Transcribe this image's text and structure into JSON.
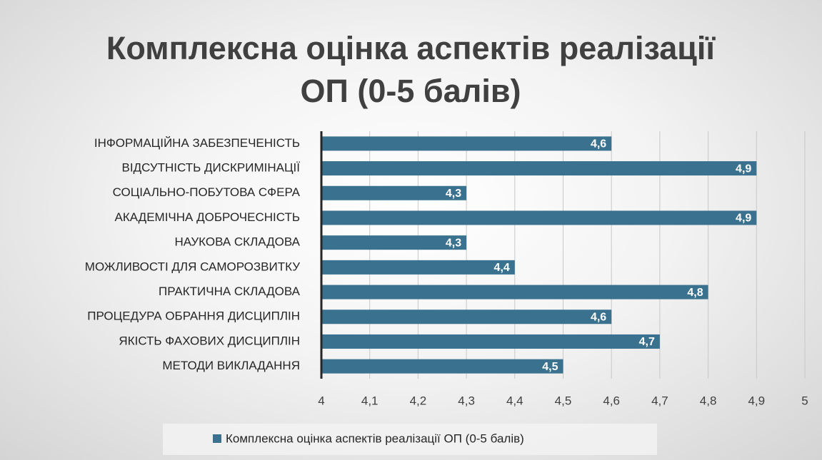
{
  "chart_data": {
    "type": "barh",
    "title": "Комплексна оцінка аспектів реалізації ОП (0-5 балів)",
    "categories": [
      "ІНФОРМАЦІЙНА ЗАБЕЗПЕЧЕНІСТЬ",
      "ВІДСУТНІСТЬ ДИСКРИМІНАЦІЇ",
      "СОЦІАЛЬНО-ПОБУТОВА СФЕРА",
      "АКАДЕМІЧНА ДОБРОЧЕСНІСТЬ",
      "НАУКОВА СКЛАДОВА",
      "МОЖЛИВОСТІ ДЛЯ САМОРОЗВИТКУ",
      "ПРАКТИЧНА СКЛАДОВА",
      "ПРОЦЕДУРА ОБРАННЯ ДИСЦИПЛІН",
      "ЯКІСТЬ ФАХОВИХ ДИСЦИПЛІН",
      "МЕТОДИ ВИКЛАДАННЯ"
    ],
    "series": [
      {
        "name": "Комплексна оцінка аспектів реалізації ОП (0-5 балів)",
        "color": "#39718f",
        "values": [
          4.6,
          4.9,
          4.3,
          4.9,
          4.3,
          4.4,
          4.8,
          4.6,
          4.7,
          4.5
        ],
        "value_labels": [
          "4,6",
          "4,9",
          "4,3",
          "4,9",
          "4,3",
          "4,4",
          "4,8",
          "4,6",
          "4,7",
          "4,5"
        ]
      }
    ],
    "xlim": [
      4,
      5
    ],
    "xticks": [
      4,
      {
        "value": 4.1,
        "label": "4,1"
      },
      {
        "value": 4.2,
        "label": "4,2"
      },
      {
        "value": 4.3,
        "label": "4,3"
      },
      {
        "value": 4.4,
        "label": "4,4"
      },
      {
        "value": 4.5,
        "label": "4,5"
      },
      {
        "value": 4.6,
        "label": "4,6"
      },
      {
        "value": 4.7,
        "label": "4,7"
      },
      {
        "value": 4.8,
        "label": "4,8"
      },
      {
        "value": 4.9,
        "label": "4,9"
      },
      5
    ],
    "grid": true,
    "legend": "bottom"
  }
}
